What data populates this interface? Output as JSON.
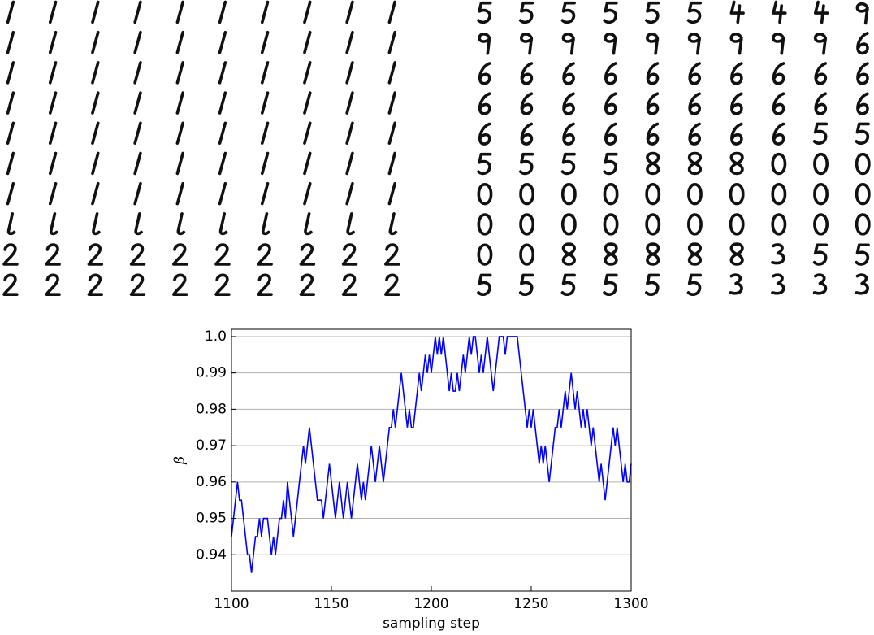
{
  "chart_data": {
    "type": "line",
    "x_label": "sampling step",
    "y_label": "β",
    "xlim": [
      1100,
      1300
    ],
    "xticks": [
      1100,
      1150,
      1200,
      1250,
      1300
    ],
    "ylim": [
      0.93,
      1.002
    ],
    "yticks": [
      0.94,
      0.95,
      0.96,
      0.97,
      0.98,
      0.99,
      {
        "value": 1,
        "label": "1.0"
      }
    ],
    "grid": true,
    "color": "#0000ff",
    "x": [
      1100,
      1101,
      1102,
      1103,
      1104,
      1105,
      1106,
      1107,
      1108,
      1109,
      1110,
      1111,
      1112,
      1113,
      1114,
      1115,
      1116,
      1117,
      1118,
      1119,
      1120,
      1121,
      1122,
      1123,
      1124,
      1125,
      1126,
      1127,
      1128,
      1129,
      1130,
      1131,
      1132,
      1133,
      1134,
      1135,
      1136,
      1137,
      1138,
      1139,
      1140,
      1141,
      1142,
      1143,
      1144,
      1145,
      1146,
      1147,
      1148,
      1149,
      1150,
      1151,
      1152,
      1153,
      1154,
      1155,
      1156,
      1157,
      1158,
      1159,
      1160,
      1161,
      1162,
      1163,
      1164,
      1165,
      1166,
      1167,
      1168,
      1169,
      1170,
      1171,
      1172,
      1173,
      1174,
      1175,
      1176,
      1177,
      1178,
      1179,
      1180,
      1181,
      1182,
      1183,
      1184,
      1185,
      1186,
      1187,
      1188,
      1189,
      1190,
      1191,
      1192,
      1193,
      1194,
      1195,
      1196,
      1197,
      1198,
      1199,
      1200,
      1201,
      1202,
      1203,
      1204,
      1205,
      1206,
      1207,
      1208,
      1209,
      1210,
      1211,
      1212,
      1213,
      1214,
      1215,
      1216,
      1217,
      1218,
      1219,
      1220,
      1221,
      1222,
      1223,
      1224,
      1225,
      1226,
      1227,
      1228,
      1229,
      1230,
      1231,
      1232,
      1233,
      1234,
      1235,
      1236,
      1237,
      1238,
      1239,
      1240,
      1241,
      1242,
      1243,
      1244,
      1245,
      1246,
      1247,
      1248,
      1249,
      1250,
      1251,
      1252,
      1253,
      1254,
      1255,
      1256,
      1257,
      1258,
      1259,
      1260,
      1261,
      1262,
      1263,
      1264,
      1265,
      1266,
      1267,
      1268,
      1269,
      1270,
      1271,
      1272,
      1273,
      1274,
      1275,
      1276,
      1277,
      1278,
      1279,
      1280,
      1281,
      1282,
      1283,
      1284,
      1285,
      1286,
      1287,
      1288,
      1289,
      1290,
      1291,
      1292,
      1293,
      1294,
      1295,
      1296,
      1297,
      1298,
      1299,
      1300
    ],
    "values": [
      0.945,
      0.95,
      0.955,
      0.96,
      0.955,
      0.955,
      0.95,
      0.945,
      0.94,
      0.94,
      0.935,
      0.94,
      0.945,
      0.945,
      0.95,
      0.945,
      0.95,
      0.95,
      0.95,
      0.945,
      0.94,
      0.945,
      0.94,
      0.945,
      0.95,
      0.95,
      0.955,
      0.95,
      0.96,
      0.955,
      0.95,
      0.945,
      0.95,
      0.955,
      0.96,
      0.965,
      0.97,
      0.965,
      0.97,
      0.975,
      0.97,
      0.965,
      0.96,
      0.955,
      0.955,
      0.955,
      0.95,
      0.955,
      0.96,
      0.965,
      0.96,
      0.955,
      0.95,
      0.955,
      0.96,
      0.955,
      0.95,
      0.955,
      0.96,
      0.955,
      0.95,
      0.955,
      0.96,
      0.965,
      0.96,
      0.955,
      0.96,
      0.955,
      0.96,
      0.965,
      0.97,
      0.965,
      0.96,
      0.965,
      0.97,
      0.965,
      0.96,
      0.965,
      0.97,
      0.975,
      0.975,
      0.98,
      0.975,
      0.98,
      0.985,
      0.99,
      0.985,
      0.98,
      0.975,
      0.98,
      0.975,
      0.975,
      0.98,
      0.985,
      0.99,
      0.985,
      0.99,
      0.995,
      0.99,
      0.995,
      0.99,
      0.995,
      1.0,
      0.995,
      1.0,
      0.995,
      1.0,
      0.995,
      0.99,
      0.985,
      0.99,
      0.985,
      0.985,
      0.99,
      0.985,
      0.99,
      0.995,
      0.99,
      0.995,
      1.0,
      0.995,
      1.0,
      1.0,
      0.995,
      0.99,
      0.995,
      0.99,
      0.995,
      1.0,
      0.995,
      0.99,
      0.985,
      0.99,
      0.995,
      1.0,
      1.0,
      1.0,
      0.995,
      1.0,
      1.0,
      1.0,
      1.0,
      1.0,
      1.0,
      0.995,
      0.99,
      0.985,
      0.98,
      0.975,
      0.98,
      0.975,
      0.98,
      0.975,
      0.97,
      0.965,
      0.97,
      0.965,
      0.97,
      0.965,
      0.96,
      0.965,
      0.97,
      0.975,
      0.975,
      0.98,
      0.975,
      0.98,
      0.985,
      0.98,
      0.985,
      0.99,
      0.985,
      0.98,
      0.985,
      0.98,
      0.975,
      0.98,
      0.975,
      0.98,
      0.975,
      0.97,
      0.975,
      0.97,
      0.965,
      0.96,
      0.965,
      0.96,
      0.955,
      0.96,
      0.965,
      0.97,
      0.975,
      0.97,
      0.975,
      0.97,
      0.965,
      0.96,
      0.965,
      0.96,
      0.96,
      0.965
    ]
  }
}
